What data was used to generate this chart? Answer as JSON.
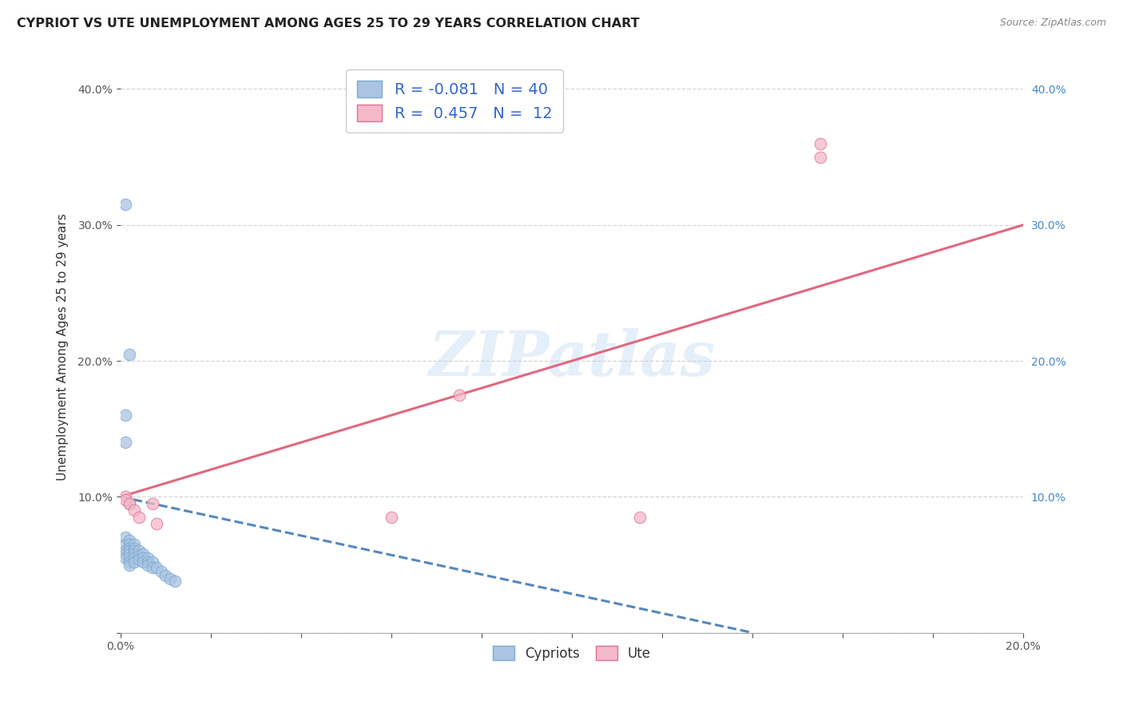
{
  "title": "CYPRIOT VS UTE UNEMPLOYMENT AMONG AGES 25 TO 29 YEARS CORRELATION CHART",
  "source": "Source: ZipAtlas.com",
  "ylabel": "Unemployment Among Ages 25 to 29 years",
  "xlim": [
    0.0,
    0.2
  ],
  "ylim": [
    0.0,
    0.42
  ],
  "cypriot_R": -0.081,
  "cypriot_N": 40,
  "ute_R": 0.457,
  "ute_N": 12,
  "cypriot_color": "#aac4e2",
  "cypriot_edge": "#7aaad0",
  "ute_color": "#f5b8c8",
  "ute_edge": "#e07090",
  "cypriot_line_color": "#5588bb",
  "ute_line_color": "#e06880",
  "cypriot_x": [
    0.001,
    0.001,
    0.001,
    0.001,
    0.001,
    0.002,
    0.002,
    0.002,
    0.002,
    0.002,
    0.002,
    0.002,
    0.002,
    0.003,
    0.003,
    0.003,
    0.003,
    0.003,
    0.003,
    0.004,
    0.004,
    0.004,
    0.005,
    0.005,
    0.005,
    0.006,
    0.006,
    0.006,
    0.007,
    0.007,
    0.008,
    0.009,
    0.01,
    0.011,
    0.012,
    0.001,
    0.002,
    0.001,
    0.001,
    0.002
  ],
  "cypriot_y": [
    0.07,
    0.065,
    0.06,
    0.058,
    0.055,
    0.068,
    0.065,
    0.062,
    0.06,
    0.058,
    0.055,
    0.052,
    0.05,
    0.065,
    0.062,
    0.06,
    0.058,
    0.055,
    0.052,
    0.06,
    0.057,
    0.054,
    0.058,
    0.055,
    0.052,
    0.055,
    0.052,
    0.05,
    0.052,
    0.048,
    0.048,
    0.045,
    0.042,
    0.04,
    0.038,
    0.315,
    0.205,
    0.16,
    0.14,
    0.095
  ],
  "ute_x": [
    0.001,
    0.001,
    0.002,
    0.003,
    0.004,
    0.007,
    0.008,
    0.06,
    0.075,
    0.115,
    0.155,
    0.155
  ],
  "ute_y": [
    0.1,
    0.098,
    0.095,
    0.09,
    0.085,
    0.095,
    0.08,
    0.085,
    0.175,
    0.085,
    0.36,
    0.35
  ],
  "ute_line_x0": 0.0,
  "ute_line_y0": 0.1,
  "ute_line_x1": 0.2,
  "ute_line_y1": 0.3,
  "cyp_line_x0": 0.0,
  "cyp_line_y0": 0.1,
  "cyp_line_x1": 0.14,
  "cyp_line_y1": 0.0
}
